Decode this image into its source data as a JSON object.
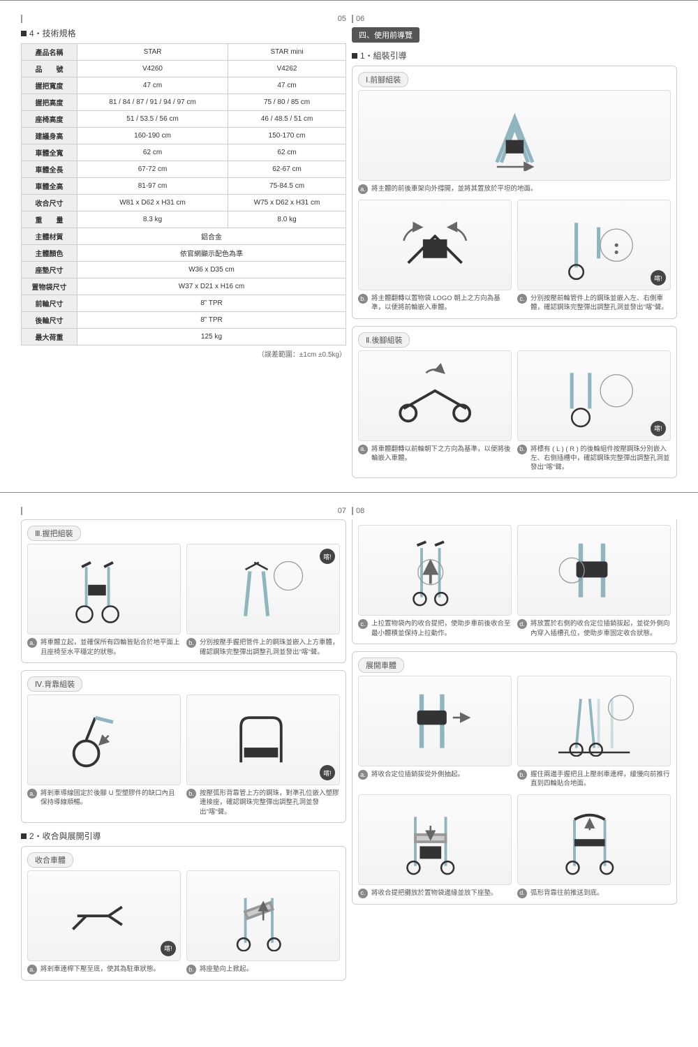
{
  "pagenums": {
    "p05": "05",
    "p06": "06",
    "p07": "07",
    "p08": "08"
  },
  "headings": {
    "spec": "4・技術規格",
    "useGuide": "四、使用前導覽",
    "assembly": "1・組裝引導",
    "foldGuide": "2・收合與展開引導"
  },
  "subLabels": {
    "frontLeg": "Ⅰ.前腳組裝",
    "rearLeg": "Ⅱ.後腳組裝",
    "handle": "Ⅲ.握把組裝",
    "backrest": "Ⅳ.背靠組裝",
    "fold": "收合車體",
    "unfold": "展開車體"
  },
  "tolerance": "（誤差範圍：±1cm ±0.5kg）",
  "click": "喀!",
  "spec": {
    "colModels": [
      "STAR",
      "STAR mini"
    ],
    "rows": [
      {
        "label": "產品名稱",
        "vals": [
          "STAR",
          "STAR mini"
        ]
      },
      {
        "label": "品　　號",
        "vals": [
          "V4260",
          "V4262"
        ]
      },
      {
        "label": "握把寬度",
        "vals": [
          "47 cm",
          "47 cm"
        ]
      },
      {
        "label": "握把高度",
        "vals": [
          "81 / 84 / 87 / 91 / 94 / 97 cm",
          "75 / 80 / 85 cm"
        ]
      },
      {
        "label": "座椅高度",
        "vals": [
          "51 / 53.5 / 56 cm",
          "46 / 48.5 / 51 cm"
        ]
      },
      {
        "label": "建議身高",
        "vals": [
          "160-190 cm",
          "150-170 cm"
        ]
      },
      {
        "label": "車體全寬",
        "vals": [
          "62 cm",
          "62 cm"
        ]
      },
      {
        "label": "車體全長",
        "vals": [
          "67-72 cm",
          "62-67 cm"
        ]
      },
      {
        "label": "車體全高",
        "vals": [
          "81-97 cm",
          "75-84.5 cm"
        ]
      },
      {
        "label": "收合尺寸",
        "vals": [
          "W81 x D62 x H31 cm",
          "W75 x D62 x H31 cm"
        ]
      },
      {
        "label": "重　　量",
        "vals": [
          "8.3 kg",
          "8.0 kg"
        ]
      }
    ],
    "mergedRows": [
      {
        "label": "主體材質",
        "val": "鋁合金"
      },
      {
        "label": "主體顏色",
        "val": "依官網顯示配色為準"
      },
      {
        "label": "座墊尺寸",
        "val": "W36 x D35 cm"
      },
      {
        "label": "置物袋尺寸",
        "val": "W37 x D21 x H16 cm"
      },
      {
        "label": "前輪尺寸",
        "val": "8”  TPR"
      },
      {
        "label": "後輪尺寸",
        "val": "8”  TPR"
      },
      {
        "label": "最大荷重",
        "val": "125 kg"
      }
    ]
  },
  "steps": {
    "I_a": "將主體的前後車架向外撐開，並將其置放於平坦的地面。",
    "I_b": "將主體翻轉以置物袋 LOGO 朝上之方向為基準，以便將前輪嵌入車體。",
    "I_c": "分別按壓前輪管件上的鋼珠並嵌入左、右側車體，確認鋼珠完整彈出調整孔洞並發出\"喀\"聲。",
    "II_a": "將車體翻轉以前輪朝下之方向為基準，以便將後輪嵌入車體。",
    "II_b": "將標有 ( L ) ( R ) 的後輪組件按壓鋼珠分別嵌入左、右側插槽中，確認鋼珠完整彈出調整孔洞並發出\"喀\"聲。",
    "III_a": "將車體立起，並確保所有四輪皆貼合於地平面上且座椅至水平穩定的狀態。",
    "III_b": "分別按壓手握把管件上的鋼珠並嵌入上方車體，確認鋼珠完整彈出調整孔洞並發出\"喀\"聲。",
    "IV_a": "將剎車導線固定於後腳 U 型塑膠件的缺口內且保持導線順暢。",
    "IV_b": "按壓弧形背靠管上方的鋼珠，對準孔位嵌入塑膠連接座，確認鋼珠完整彈出調整孔洞並發出\"喀\"聲。",
    "fold_a": "將剎車連桿下壓至底，使其為駐車狀態。",
    "fold_b": "將座墊向上掀起。",
    "p08_c": "上拉置物袋內的收合提把，使助步車前後收合至最小體積並保持上拉動作。",
    "p08_d": "將放置於右側的收合定位插銷拔起，並從外側向內穿入插槽孔位，使助步車固定收合狀態。",
    "unfold_a": "將收合定位插銷拔從外側抽起。",
    "unfold_b": "握住兩邊手握把且上壓剎車連桿，緩慢向前推行直到四輪貼合地面。",
    "unfold_c": "將收合提把攤放於置物袋邊緣並放下座墊。",
    "unfold_d": "弧形背靠往前推送到底。"
  },
  "colors": {
    "frame": "#8fb5bf",
    "dark": "#333",
    "arrow": "#666"
  }
}
